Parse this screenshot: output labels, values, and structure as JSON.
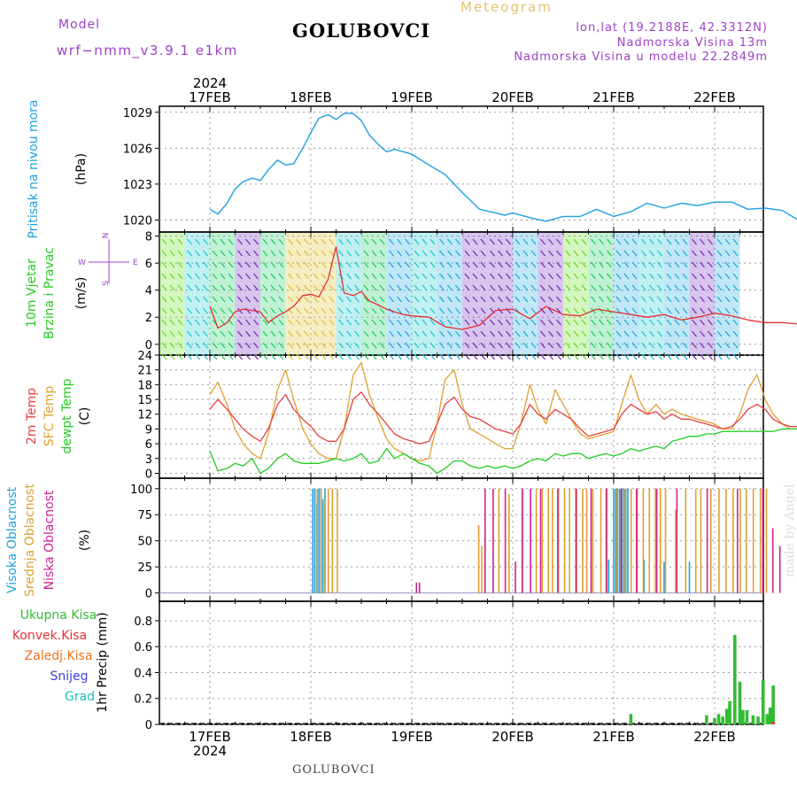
{
  "header": {
    "model_label": "Model",
    "model_name": "wrf−nmm_v3.9.1  e1km",
    "title": "GOLUBOVCI",
    "meteogram": "Meteogram",
    "lonlat": "lon,lat (19.2188E, 42.3312N)",
    "altitude": "Nadmorska Visina 13m",
    "model_altitude": "Nadmorska Visina u modelu 22.2849m"
  },
  "footer": {
    "station": "GOLUBOVCI",
    "credit": "made by Angel"
  },
  "colors": {
    "pressure": "#1fa0e0",
    "wind_speed": "#e03030",
    "temp2m": "#e84040",
    "sfc_temp": "#e0a030",
    "dewpoint": "#22cc22",
    "high_cloud": "#1fa0e0",
    "mid_cloud": "#e0a030",
    "low_cloud": "#d02090",
    "total_precip": "#33bb33",
    "conv_precip": "#e83030",
    "frozen_precip": "#f07020",
    "snow": "#4040e0",
    "graupel": "#20c0c0",
    "grid": "#999999"
  },
  "chart_data": [
    {
      "type": "line",
      "title": "",
      "ylabel": "Pritisak na nivou mora",
      "unit": "(hPa)",
      "ylim": [
        1019,
        1029.5
      ],
      "yticks": [
        1020,
        1023,
        1026,
        1029
      ],
      "x_days": [
        "17FEB",
        "18FEB",
        "19FEB",
        "20FEB",
        "21FEB",
        "22FEB"
      ],
      "top_year": "2024",
      "series": [
        {
          "name": "",
          "x": [
            0,
            0.08,
            0.17,
            0.25,
            0.33,
            0.42,
            0.5,
            0.58,
            0.67,
            0.75,
            0.83,
            0.92,
            1.0,
            1.08,
            1.17,
            1.25,
            1.33,
            1.42,
            1.5,
            1.58,
            1.67,
            1.75,
            1.83,
            1.92,
            2.0,
            2.17,
            2.33,
            2.5,
            2.67,
            2.83,
            2.92,
            3.0,
            3.17,
            3.33,
            3.5,
            3.67,
            3.83,
            4.0,
            4.17,
            4.33,
            4.5,
            4.67,
            4.83,
            5.0,
            5.17,
            5.33,
            5.5,
            5.67,
            5.83,
            6.0
          ],
          "values": [
            1020.9,
            1020.5,
            1021.4,
            1022.6,
            1023.2,
            1023.5,
            1023.3,
            1024.2,
            1025.0,
            1024.6,
            1024.7,
            1026.0,
            1027.3,
            1028.5,
            1028.8,
            1028.4,
            1028.9,
            1028.9,
            1028.3,
            1027.1,
            1026.3,
            1025.7,
            1025.9,
            1025.7,
            1025.5,
            1024.6,
            1023.8,
            1022.3,
            1020.9,
            1020.6,
            1020.4,
            1020.6,
            1020.2,
            1019.9,
            1020.3,
            1020.3,
            1020.9,
            1020.3,
            1020.7,
            1021.4,
            1021.0,
            1021.4,
            1021.2,
            1021.5,
            1021.5,
            1020.9,
            1021.0,
            1020.8,
            1020.0,
            1019.8
          ]
        }
      ]
    },
    {
      "type": "line",
      "title": "",
      "ylabel": "10m Vjetar Brzina i Pravac",
      "unit": "(m/s)",
      "compass": {
        "n": "N",
        "s": "S",
        "e": "E",
        "w": "W"
      },
      "ylim": [
        -0.8,
        8.3
      ],
      "yticks": [
        0,
        2,
        4,
        6,
        8
      ],
      "series": [
        {
          "name": "",
          "x": [
            0,
            0.08,
            0.17,
            0.25,
            0.33,
            0.42,
            0.5,
            0.58,
            0.67,
            0.75,
            0.83,
            0.92,
            1.0,
            1.08,
            1.17,
            1.25,
            1.33,
            1.42,
            1.5,
            1.58,
            1.67,
            1.75,
            1.83,
            1.92,
            2.0,
            2.17,
            2.33,
            2.5,
            2.67,
            2.83,
            3.0,
            3.17,
            3.33,
            3.5,
            3.67,
            3.83,
            4.0,
            4.17,
            4.33,
            4.5,
            4.67,
            4.83,
            5.0,
            5.17,
            5.33,
            5.5,
            5.67,
            5.83,
            6.0
          ],
          "values": [
            2.8,
            1.2,
            1.6,
            2.4,
            2.6,
            2.5,
            2.4,
            1.6,
            2.1,
            2.4,
            2.8,
            3.6,
            3.7,
            3.5,
            4.8,
            7.2,
            3.8,
            3.6,
            3.9,
            3.2,
            2.9,
            2.6,
            2.4,
            2.2,
            2.1,
            2.0,
            1.3,
            1.1,
            1.4,
            2.5,
            2.6,
            1.9,
            2.8,
            2.2,
            2.1,
            2.6,
            2.4,
            2.2,
            2.0,
            2.2,
            1.8,
            2.0,
            2.3,
            2.1,
            1.8,
            1.6,
            1.6,
            1.5,
            3.0
          ]
        }
      ]
    },
    {
      "type": "line",
      "title": "",
      "ylabels": [
        "2m Temp",
        "SFC Temp",
        "dewpt Temp"
      ],
      "unit": "(C)",
      "ylim": [
        -1,
        24
      ],
      "yticks": [
        0,
        3,
        6,
        9,
        12,
        15,
        18,
        21,
        24
      ],
      "series": [
        {
          "name": "2m Temp",
          "x": [
            0,
            0.08,
            0.17,
            0.25,
            0.33,
            0.42,
            0.5,
            0.58,
            0.67,
            0.75,
            0.83,
            0.92,
            1.0,
            1.08,
            1.17,
            1.25,
            1.33,
            1.42,
            1.5,
            1.58,
            1.67,
            1.75,
            1.83,
            1.92,
            2.0,
            2.08,
            2.17,
            2.25,
            2.33,
            2.42,
            2.5,
            2.58,
            2.67,
            2.75,
            2.83,
            2.92,
            3.0,
            3.08,
            3.17,
            3.25,
            3.33,
            3.42,
            3.5,
            3.58,
            3.67,
            3.75,
            3.83,
            3.92,
            4.0,
            4.08,
            4.17,
            4.25,
            4.33,
            4.42,
            4.5,
            4.58,
            4.67,
            4.75,
            4.83,
            4.92,
            5.0,
            5.08,
            5.17,
            5.25,
            5.33,
            5.42,
            5.5,
            5.58,
            5.67,
            5.75,
            5.83,
            5.92,
            6.0
          ],
          "values": [
            13,
            15,
            13,
            11,
            9,
            7.5,
            6.5,
            9,
            14,
            16,
            13,
            11,
            9.5,
            7.5,
            6.5,
            6.5,
            9,
            15,
            16.5,
            14,
            12,
            10,
            8,
            7,
            6.5,
            6,
            6.5,
            10,
            14,
            15.5,
            13,
            11.5,
            11,
            10,
            9,
            8.5,
            8,
            10,
            14,
            12,
            11,
            13,
            12,
            11,
            9,
            7.5,
            8,
            8.5,
            9,
            12,
            14,
            13,
            12,
            12.5,
            11,
            12,
            11,
            11,
            10.5,
            10,
            9.5,
            9,
            9.5,
            11,
            13,
            14,
            13,
            11,
            10,
            9.5,
            9.5,
            11,
            14
          ]
        },
        {
          "name": "SFC Temp",
          "x": [
            0,
            0.08,
            0.17,
            0.25,
            0.33,
            0.42,
            0.5,
            0.58,
            0.67,
            0.75,
            0.83,
            0.92,
            1.0,
            1.08,
            1.17,
            1.25,
            1.33,
            1.42,
            1.5,
            1.58,
            1.67,
            1.75,
            1.83,
            1.92,
            2.0,
            2.08,
            2.17,
            2.25,
            2.33,
            2.42,
            2.5,
            2.58,
            2.67,
            2.75,
            2.83,
            2.92,
            3.0,
            3.08,
            3.17,
            3.25,
            3.33,
            3.42,
            3.5,
            3.58,
            3.67,
            3.75,
            3.83,
            3.92,
            4.0,
            4.08,
            4.17,
            4.25,
            4.33,
            4.42,
            4.5,
            4.58,
            4.67,
            4.75,
            4.83,
            4.92,
            5.0,
            5.08,
            5.17,
            5.25,
            5.33,
            5.42,
            5.5,
            5.58,
            5.67,
            5.75,
            5.83,
            5.92,
            6.0
          ],
          "values": [
            16,
            18.5,
            14,
            9,
            6,
            4,
            3,
            8,
            17,
            21,
            15,
            9,
            6,
            4,
            3,
            3,
            9,
            20,
            22.5,
            16,
            11,
            7,
            5,
            4,
            3,
            2.5,
            3,
            10,
            19,
            21,
            14,
            9,
            8,
            7,
            6,
            5,
            5,
            10,
            18,
            13,
            10,
            17,
            14,
            11,
            8,
            7,
            7.5,
            8,
            8.5,
            14,
            20,
            15,
            12,
            14,
            12,
            13,
            12,
            11.5,
            11,
            10.5,
            10,
            9,
            9,
            12,
            17,
            20,
            15,
            12,
            10,
            9,
            9,
            13,
            20
          ]
        },
        {
          "name": "dewpt Temp",
          "x": [
            0,
            0.08,
            0.17,
            0.25,
            0.33,
            0.42,
            0.5,
            0.58,
            0.67,
            0.75,
            0.83,
            0.92,
            1.0,
            1.08,
            1.17,
            1.25,
            1.33,
            1.42,
            1.5,
            1.58,
            1.67,
            1.75,
            1.83,
            1.92,
            2.0,
            2.08,
            2.17,
            2.25,
            2.33,
            2.42,
            2.5,
            2.58,
            2.67,
            2.75,
            2.83,
            2.92,
            3.0,
            3.08,
            3.17,
            3.25,
            3.33,
            3.42,
            3.5,
            3.58,
            3.67,
            3.75,
            3.83,
            3.92,
            4.0,
            4.08,
            4.17,
            4.25,
            4.33,
            4.42,
            4.5,
            4.58,
            4.67,
            4.75,
            4.83,
            4.92,
            5.0,
            5.08,
            5.17,
            5.25,
            5.33,
            5.42,
            5.5,
            5.58,
            5.67,
            5.75,
            5.83,
            5.92,
            6.0
          ],
          "values": [
            4.5,
            0.5,
            1,
            2,
            1.5,
            3,
            0,
            1,
            3,
            4,
            2.5,
            2,
            2,
            2,
            2.5,
            3,
            2.5,
            3,
            4,
            2,
            2.5,
            5,
            3,
            4,
            3,
            2,
            1.5,
            0,
            1,
            2.5,
            2.5,
            1.5,
            1,
            1.5,
            1,
            1.5,
            1,
            1.5,
            2.5,
            3,
            2.5,
            4,
            3.5,
            4,
            4,
            3,
            3.5,
            4,
            3.5,
            4,
            5,
            4.5,
            5,
            5.5,
            5,
            6.5,
            7,
            7.5,
            7.5,
            8,
            8,
            8.5,
            8.5,
            8.5,
            8.5,
            8.5,
            8.5,
            8.5,
            9,
            9,
            9,
            9,
            9
          ]
        }
      ]
    },
    {
      "type": "bar",
      "title": "",
      "ylabels": [
        "Visoka Oblacnost",
        "Srednja Oblacnost",
        "Niska Oblacnost"
      ],
      "unit": "(%)",
      "ylim": [
        -8,
        110
      ],
      "yticks": [
        0,
        25,
        50,
        75,
        100
      ],
      "series": [
        {
          "name": "Visoka Oblacnost",
          "x": [
            1.02,
            1.04,
            1.06,
            1.08,
            1.1,
            1.12,
            1.14,
            3.95,
            4.0,
            4.02,
            4.04,
            4.06,
            4.08,
            4.1,
            4.12,
            4.14,
            4.3,
            4.5,
            4.75
          ],
          "values": [
            100,
            100,
            85,
            100,
            100,
            90,
            100,
            32,
            100,
            100,
            100,
            100,
            100,
            100,
            100,
            100,
            32,
            30,
            30
          ]
        },
        {
          "name": "Srednja Oblacnost",
          "x": [
            1.05,
            1.09,
            1.13,
            1.16,
            1.2,
            1.25,
            2.65,
            2.68,
            2.85,
            2.95,
            3.08,
            3.22,
            3.28,
            3.34,
            3.38,
            3.44,
            3.5,
            3.55,
            3.62,
            3.68,
            3.72,
            3.78,
            3.86,
            3.92,
            4.02,
            4.06,
            4.1,
            4.16,
            4.22,
            4.28,
            4.34,
            4.4,
            4.45,
            4.5,
            4.6,
            4.7,
            4.8,
            4.85,
            4.95,
            5.03,
            5.1,
            5.17,
            5.24,
            5.3,
            5.37,
            5.44,
            5.5
          ],
          "values": [
            100,
            100,
            90,
            100,
            100,
            100,
            65,
            45,
            100,
            95,
            100,
            100,
            100,
            100,
            100,
            100,
            100,
            100,
            100,
            100,
            100,
            100,
            100,
            100,
            100,
            100,
            100,
            100,
            100,
            100,
            100,
            100,
            100,
            100,
            80,
            100,
            100,
            100,
            100,
            100,
            100,
            100,
            100,
            100,
            100,
            100,
            100
          ]
        },
        {
          "name": "Niska Oblacnost",
          "x": [
            2.02,
            2.05,
            2.7,
            2.78,
            2.9,
            3.0,
            3.07,
            3.15,
            3.25,
            3.42,
            3.6,
            3.75,
            3.9,
            4.05,
            4.2,
            4.4,
            4.6,
            4.9,
            5.2,
            5.45,
            5.55,
            5.62
          ],
          "values": [
            10,
            10,
            100,
            100,
            100,
            30,
            100,
            100,
            100,
            100,
            100,
            100,
            100,
            100,
            100,
            100,
            100,
            100,
            100,
            100,
            62,
            45
          ]
        }
      ]
    },
    {
      "type": "bar",
      "title": "",
      "ylabel": "1hr Precip",
      "unit": "(mm)",
      "ylim": [
        0,
        0.95
      ],
      "yticks": [
        0,
        0.2,
        0.4,
        0.6,
        0.8
      ],
      "legend": [
        "Ukupna Kisa",
        "Konvek.Kisa",
        "Zaledj.Kisa",
        "Snijeg",
        "Grad"
      ],
      "series": [
        {
          "name": "Ukupna Kisa",
          "x": [
            4.17,
            4.92,
            5.0,
            5.04,
            5.08,
            5.12,
            5.15,
            5.2,
            5.25,
            5.28,
            5.32,
            5.38,
            5.43,
            5.48,
            5.52,
            5.55,
            5.58
          ],
          "values": [
            0.08,
            0.07,
            0.05,
            0.08,
            0.06,
            0.12,
            0.18,
            0.69,
            0.33,
            0.11,
            0.11,
            0.07,
            0.06,
            0.34,
            0.08,
            0.13,
            0.3
          ]
        },
        {
          "name": "Konvek.Kisa",
          "x": [
            5.58
          ],
          "values": [
            0.02
          ]
        }
      ]
    }
  ]
}
